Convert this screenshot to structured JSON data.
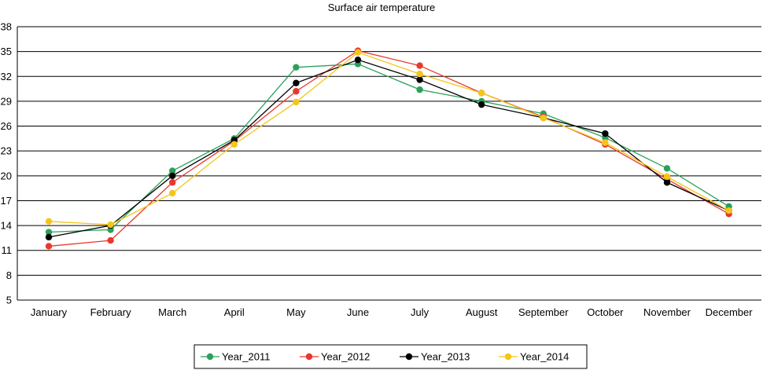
{
  "chart_data": {
    "type": "line",
    "title": "Surface air temperature",
    "xlabel": "",
    "ylabel": "",
    "categories": [
      "January",
      "February",
      "March",
      "April",
      "May",
      "June",
      "July",
      "August",
      "September",
      "October",
      "November",
      "December"
    ],
    "ylim": [
      5,
      38
    ],
    "yticks": [
      5,
      8,
      11,
      14,
      17,
      20,
      23,
      26,
      29,
      32,
      35,
      38
    ],
    "grid": "horizontal",
    "legend_position": "bottom",
    "series": [
      {
        "name": "Year_2011",
        "color": "#2ca05a",
        "values": [
          13.2,
          13.5,
          20.6,
          24.5,
          33.1,
          33.5,
          30.4,
          29.0,
          27.5,
          24.6,
          20.9,
          16.3
        ]
      },
      {
        "name": "Year_2012",
        "color": "#e8382c",
        "values": [
          11.5,
          12.2,
          19.2,
          24.2,
          30.2,
          35.1,
          33.3,
          30.0,
          27.1,
          23.8,
          19.6,
          15.4
        ]
      },
      {
        "name": "Year_2013",
        "color": "#000000",
        "values": [
          12.6,
          14.0,
          20.0,
          24.3,
          31.2,
          34.0,
          31.6,
          28.6,
          27.0,
          25.1,
          19.2,
          15.8
        ]
      },
      {
        "name": "Year_2014",
        "color": "#f5c518",
        "values": [
          14.5,
          14.1,
          17.9,
          23.8,
          28.9,
          34.9,
          32.3,
          30.0,
          27.0,
          24.0,
          19.9,
          15.8
        ]
      }
    ]
  }
}
